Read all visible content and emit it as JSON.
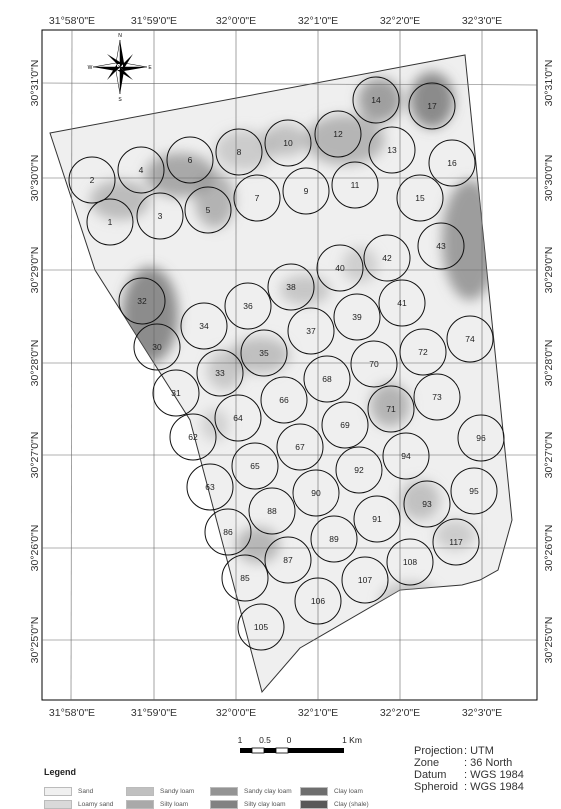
{
  "map": {
    "top_ticks": [
      "31°58'0\"E",
      "31°59'0\"E",
      "32°0'0\"E",
      "32°1'0\"E",
      "32°2'0\"E",
      "32°3'0\"E"
    ],
    "bottom_ticks": [
      "31°58'0\"E",
      "31°59'0\"E",
      "32°0'0\"E",
      "32°1'0\"E",
      "32°2'0\"E",
      "32°3'0\"E"
    ],
    "left_ticks": [
      "30°31'0\"N",
      "30°30'0\"N",
      "30°29'0\"N",
      "30°28'0\"N",
      "30°27'0\"N",
      "30°26'0\"N",
      "30°25'0\"N"
    ],
    "right_ticks": [
      "30°31'0\"N",
      "30°30'0\"N",
      "30°29'0\"N",
      "30°28'0\"N",
      "30°27'0\"N",
      "30°26'0\"N",
      "30°25'0\"N"
    ],
    "north_label": "N",
    "compass_letters": [
      "N",
      "E",
      "S",
      "W"
    ],
    "sample_labels": [
      "1",
      "2",
      "3",
      "4",
      "5",
      "6",
      "7",
      "8",
      "9",
      "10",
      "11",
      "12",
      "13",
      "14",
      "15",
      "16",
      "17",
      "43",
      "42",
      "40",
      "38",
      "36",
      "32",
      "34",
      "30",
      "33",
      "35",
      "37",
      "39",
      "41",
      "72",
      "74",
      "70",
      "68",
      "66",
      "64",
      "31",
      "62",
      "67",
      "69",
      "71",
      "73",
      "96",
      "94",
      "92",
      "65",
      "63",
      "90",
      "88",
      "86",
      "91",
      "93",
      "95",
      "89",
      "87",
      "85",
      "108",
      "117",
      "107",
      "106",
      "105"
    ]
  },
  "scale_bar": {
    "labels": [
      "1",
      "0.5",
      "0",
      "1 Km"
    ]
  },
  "projection": {
    "rows": [
      {
        "key": "Projection",
        "value": ": UTM"
      },
      {
        "key": "Zone",
        "value": ": 36 North"
      },
      {
        "key": "Datum",
        "value": ": WGS 1984"
      },
      {
        "key": "Spheroid",
        "value": ": WGS 1984"
      }
    ]
  },
  "legend": {
    "title": "Legend",
    "items": [
      {
        "label": "Sand",
        "color": "#f0f0f0"
      },
      {
        "label": "Loamy sand",
        "color": "#d9d9d9"
      },
      {
        "label": "Sandy loam",
        "color": "#c0c0c0"
      },
      {
        "label": "Silty loam",
        "color": "#a9a9a9"
      },
      {
        "label": "Sandy clay loam",
        "color": "#949494"
      },
      {
        "label": "Silty clay loam",
        "color": "#828282"
      },
      {
        "label": "Clay loam",
        "color": "#6e6e6e"
      },
      {
        "label": "Clay (shale)",
        "color": "#585858"
      }
    ]
  }
}
